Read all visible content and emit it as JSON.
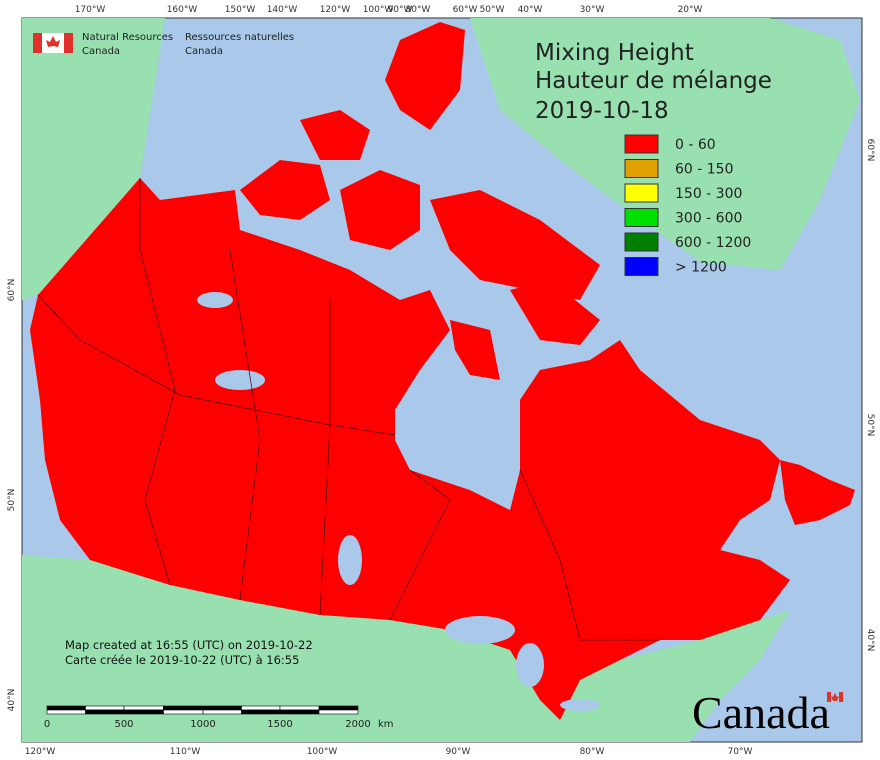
{
  "title": {
    "en": "Mixing Height",
    "fr": "Hauteur de mélange",
    "date": "2019-10-18"
  },
  "agency": {
    "en": [
      "Natural Resources",
      "Canada"
    ],
    "fr": [
      "Ressources naturelles",
      "Canada"
    ]
  },
  "legend": [
    {
      "label": "0 - 60",
      "color": "#ff0000"
    },
    {
      "label": "60 - 150",
      "color": "#e0a000"
    },
    {
      "label": "150 - 300",
      "color": "#ffff00"
    },
    {
      "label": "300 - 600",
      "color": "#00e000"
    },
    {
      "label": "600 - 1200",
      "color": "#008000"
    },
    {
      "label": "> 1200",
      "color": "#0000ff"
    }
  ],
  "credits": [
    "Map created at 16:55 (UTC) on 2019-10-22",
    "Carte créée le 2019-10-22 (UTC) à 16:55"
  ],
  "scale_bar": {
    "labels": [
      "0",
      "500",
      "1000",
      "1500",
      "2000"
    ],
    "unit": "km"
  },
  "graticule": {
    "top": [
      "170°W",
      "160°W",
      "150°W",
      "140°W",
      "120°W",
      "100°W",
      "90°W",
      "80°W",
      "60°W",
      "50°W",
      "40°W",
      "30°W",
      "20°W"
    ],
    "bottom": [
      "120°W",
      "110°W",
      "100°W",
      "90°W",
      "80°W",
      "70°W"
    ],
    "left": [
      "60°N",
      "50°N",
      "40°N"
    ],
    "right": [
      "60°N",
      "50°N",
      "40°N"
    ]
  },
  "wordmark": "Canada"
}
